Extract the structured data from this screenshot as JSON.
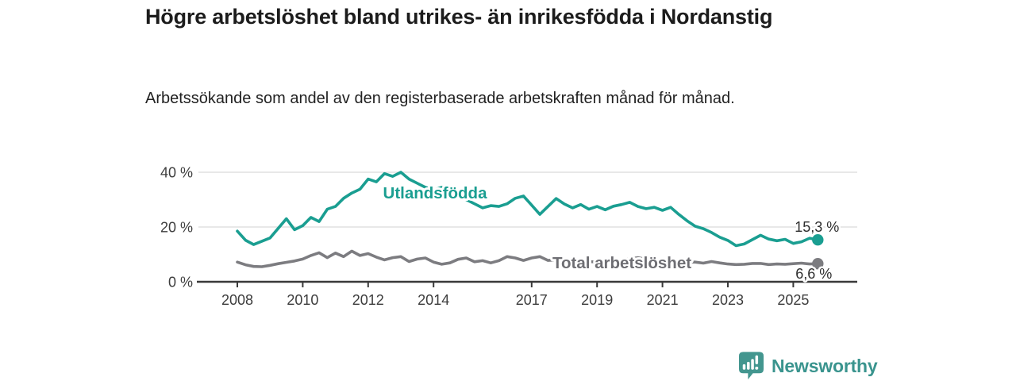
{
  "header": {
    "title": "Högre arbetslöshet bland utrikes- än inrikesfödda i Nordanstig",
    "subtitle": "Arbetssökande som andel av den registerbaserade arbetskraften månad för månad."
  },
  "footer": {
    "brand": "Newsworthy",
    "brand_color": "#3a948e"
  },
  "chart_data": {
    "type": "line",
    "title": "Högre arbetslöshet bland utrikes- än inrikesfödda i Nordanstig",
    "subtitle": "Arbetssökande som andel av den registerbaserade arbetskraften månad för månad.",
    "unit": "%",
    "grid": "horizontal",
    "legend_position": "inline-labels-on-lines",
    "x_axis": {
      "ticks": [
        "2008",
        "2010",
        "2012",
        "2014",
        "2017",
        "2019",
        "2021",
        "2023",
        "2025"
      ],
      "range_years": [
        2007,
        2027
      ]
    },
    "y_axis": {
      "ticks": [
        {
          "value": 0,
          "label": "0 %"
        },
        {
          "value": 20,
          "label": "20 %"
        },
        {
          "value": 40,
          "label": "40 %"
        }
      ],
      "range": [
        0,
        42
      ]
    },
    "series": [
      {
        "name": "Utlandsfödda",
        "color": "#1a9e91",
        "start_year": 2008,
        "points_per_year": 4,
        "end_label": "15,3 %",
        "last_value": 15.3,
        "values": [
          18.5,
          15.2,
          13.6,
          14.8,
          16.0,
          19.5,
          23.0,
          19.0,
          20.5,
          23.5,
          22.0,
          26.5,
          27.5,
          30.5,
          32.4,
          33.8,
          37.5,
          36.5,
          39.5,
          38.5,
          40.0,
          37.5,
          36.0,
          34.5,
          33.5,
          34.5,
          32.5,
          31.0,
          30.0,
          28.5,
          27.0,
          27.8,
          27.5,
          28.5,
          30.5,
          31.3,
          28.0,
          24.6,
          27.5,
          30.4,
          28.4,
          27.0,
          28.2,
          26.5,
          27.5,
          26.3,
          27.6,
          28.2,
          29.0,
          27.5,
          26.7,
          27.2,
          26.1,
          27.2,
          24.6,
          22.3,
          20.3,
          19.4,
          18.0,
          16.3,
          15.1,
          13.2,
          13.8,
          15.4,
          17.0,
          15.6,
          15.0,
          15.5,
          14.0,
          14.6,
          15.9,
          15.3
        ]
      },
      {
        "name": "Total arbetslöshet",
        "color": "#7c7c80",
        "start_year": 2008,
        "points_per_year": 4,
        "end_label": "6,6 %",
        "last_value": 6.6,
        "values": [
          7.2,
          6.2,
          5.6,
          5.5,
          6.0,
          6.6,
          7.1,
          7.6,
          8.3,
          9.6,
          10.6,
          8.8,
          10.5,
          9.2,
          11.2,
          9.6,
          10.3,
          9.0,
          8.0,
          8.8,
          9.2,
          7.4,
          8.3,
          8.7,
          7.2,
          6.4,
          6.9,
          8.2,
          8.7,
          7.3,
          7.7,
          6.9,
          7.7,
          9.2,
          8.7,
          7.8,
          8.7,
          9.2,
          7.8,
          8.0,
          7.6,
          8.2,
          7.8,
          7.4,
          7.2,
          7.6,
          7.3,
          7.8,
          8.4,
          8.8,
          8.2,
          7.8,
          7.6,
          7.9,
          7.4,
          7.2,
          7.2,
          6.8,
          7.4,
          6.9,
          6.5,
          6.3,
          6.4,
          6.7,
          6.7,
          6.3,
          6.5,
          6.4,
          6.6,
          6.8,
          6.5,
          6.6
        ]
      }
    ]
  }
}
